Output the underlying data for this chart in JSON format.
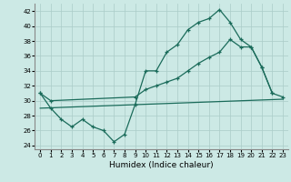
{
  "xlabel": "Humidex (Indice chaleur)",
  "bg_color": "#cce9e5",
  "grid_color": "#aaccc8",
  "line_color": "#1a6b5a",
  "xlim": [
    -0.5,
    23.5
  ],
  "ylim": [
    23.5,
    43
  ],
  "yticks": [
    24,
    26,
    28,
    30,
    32,
    34,
    36,
    38,
    40,
    42
  ],
  "xticks": [
    0,
    1,
    2,
    3,
    4,
    5,
    6,
    7,
    8,
    9,
    10,
    11,
    12,
    13,
    14,
    15,
    16,
    17,
    18,
    19,
    20,
    21,
    22,
    23
  ],
  "line1_x": [
    0,
    1,
    2,
    3,
    4,
    5,
    6,
    7,
    8,
    9,
    10,
    11,
    12,
    13,
    14,
    15,
    16,
    17,
    18,
    19,
    20,
    21,
    22
  ],
  "line1_y": [
    31,
    29,
    27.5,
    26.5,
    27.5,
    26.5,
    26,
    24.5,
    25.5,
    29.5,
    34,
    34,
    36.5,
    37.5,
    39.5,
    40.5,
    41,
    42.2,
    40.5,
    38.2,
    37.2,
    34.5,
    31
  ],
  "line2_x": [
    0,
    1,
    9,
    10,
    11,
    12,
    13,
    14,
    15,
    16,
    17,
    18,
    19,
    20,
    21,
    22,
    23
  ],
  "line2_y": [
    31,
    30,
    30.5,
    31.5,
    32,
    32.5,
    33,
    34,
    35,
    35.8,
    36.5,
    38.2,
    37.2,
    37.2,
    34.5,
    31,
    30.5
  ],
  "line3_x": [
    0,
    23
  ],
  "line3_y": [
    29,
    30.2
  ]
}
